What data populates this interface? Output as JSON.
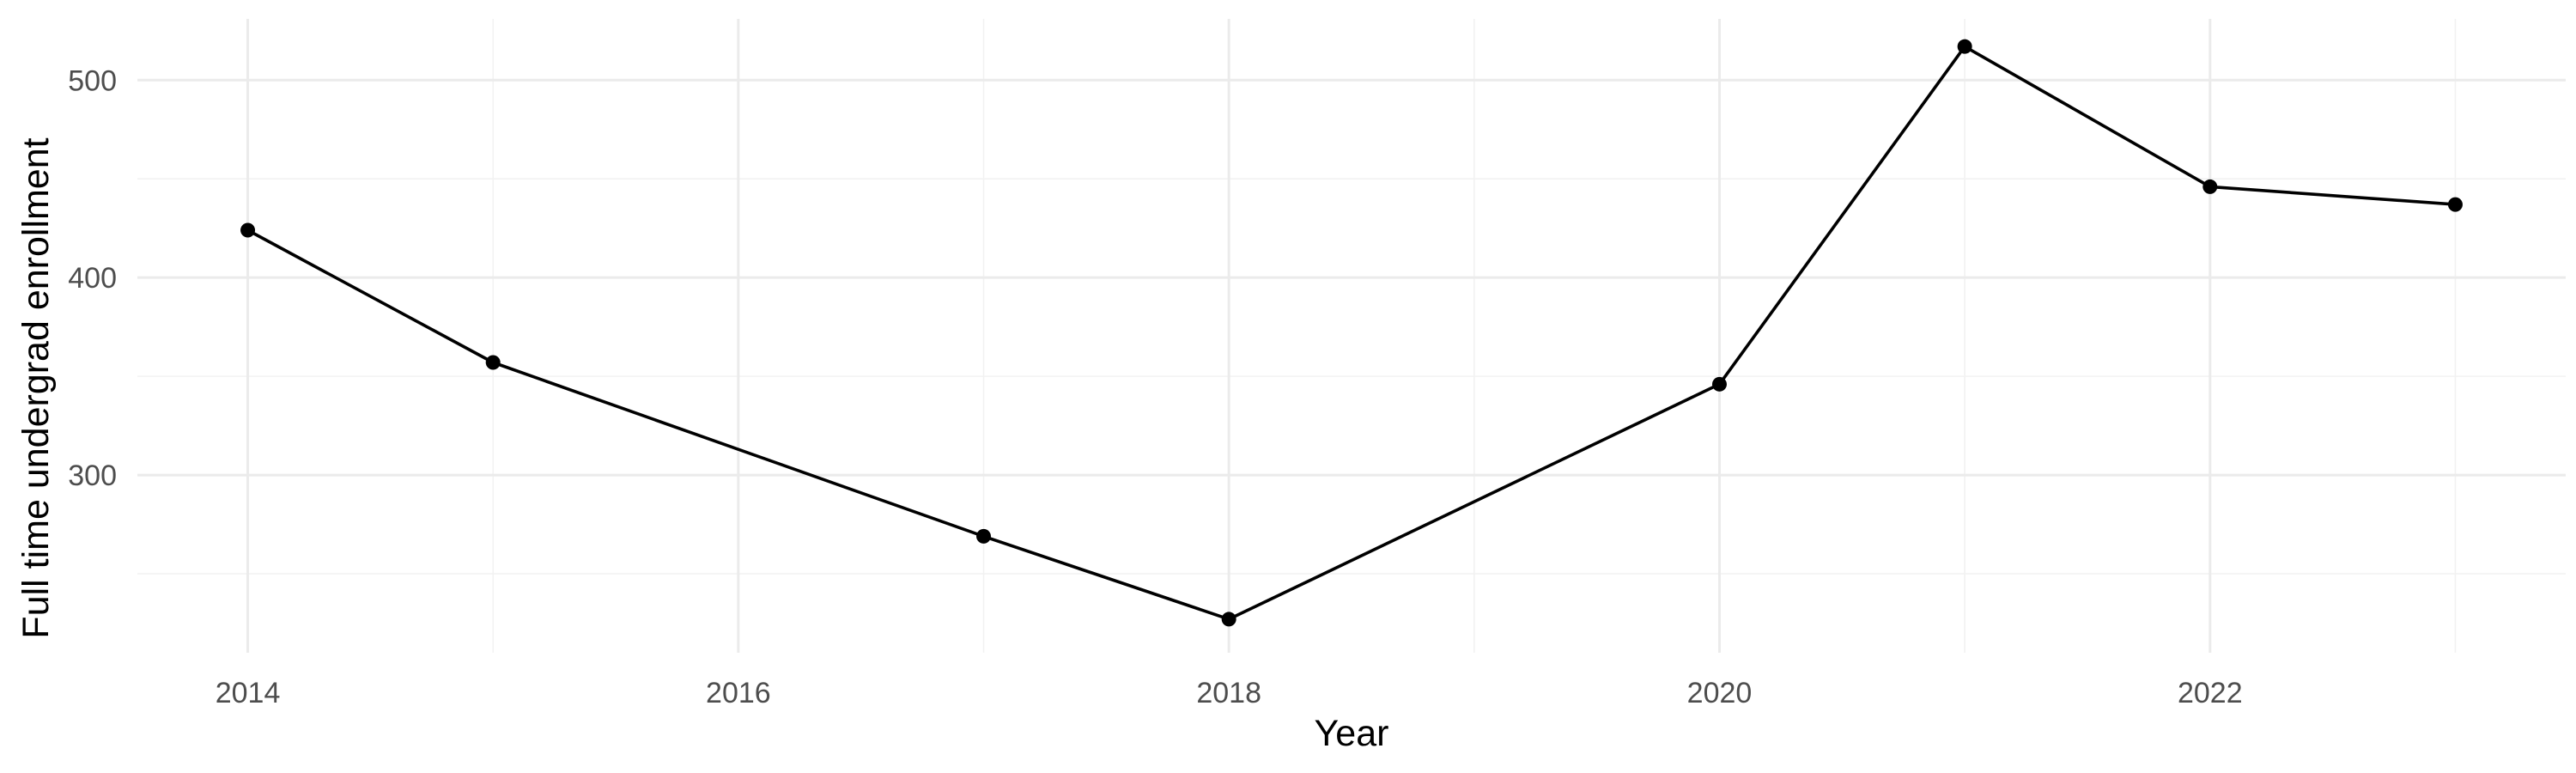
{
  "chart_data": {
    "type": "line",
    "title": "",
    "xlabel": "Year",
    "ylabel": "Full time undergrad enrollment",
    "x": [
      2014,
      2015,
      2017,
      2018,
      2020,
      2021,
      2022,
      2023
    ],
    "series": [
      {
        "values": [
          424,
          357,
          269,
          227,
          346,
          517,
          446,
          437
        ]
      }
    ],
    "xlim": [
      2013.55,
      2023.45
    ],
    "ylim": [
      210,
      531
    ],
    "x_major_ticks": [
      2014,
      2016,
      2018,
      2020,
      2022
    ],
    "x_tick_labels": [
      "2014",
      "2016",
      "2018",
      "2020",
      "2022"
    ],
    "x_minor_ticks": [
      2015,
      2017,
      2019,
      2021,
      2023
    ],
    "y_major_ticks": [
      300,
      400,
      500
    ],
    "y_tick_labels": [
      "300",
      "400",
      "500"
    ],
    "y_minor_ticks": [
      250,
      350,
      450
    ],
    "grid": true,
    "legend": "none",
    "line_color": "#000000",
    "grid_color": "#ebebeb"
  }
}
